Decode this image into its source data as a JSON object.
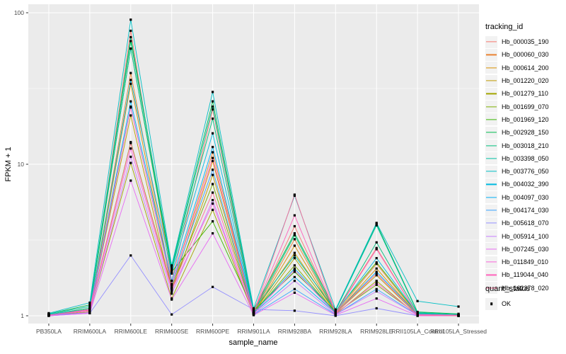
{
  "figure": {
    "panel_bg": "#EBEBEB",
    "grid_color": "#FFFFFF",
    "axis_text_color": "#4D4D4D",
    "legend_key_bg": "#F2F2F2",
    "point_color": "#000000"
  },
  "legends": {
    "tracking": {
      "title": "tracking_id"
    },
    "quant": {
      "title": "quant_status",
      "items": [
        {
          "label": "OK",
          "marker": "black-square"
        }
      ]
    }
  },
  "chart_data": {
    "type": "line",
    "title": "",
    "xlabel": "sample_name",
    "ylabel": "FPKM + 1",
    "y_scale": "log10",
    "ylim": [
      1,
      100
    ],
    "y_ticks": [
      1,
      10,
      100
    ],
    "y_minor_gridlines": [
      3.162,
      31.62
    ],
    "grid": true,
    "legend_position": "right",
    "point_marker": "small black square at every data point (quant_status = OK)",
    "categories": [
      "PB350LA",
      "RRIM600LA",
      "RRIM600LE",
      "RRIM600SE",
      "RRIM600PE",
      "RRIM901LA",
      "RRIM928BA",
      "RRIM928LA",
      "RRIM928LE",
      "RRII105LA_Control",
      "RRII105LA_Stressed"
    ],
    "series": [
      {
        "name": "Hb_000035_190",
        "color": "#F8766D",
        "values": [
          1.02,
          1.1,
          76,
          1.7,
          23,
          1.05,
          3.9,
          1.05,
          2.8,
          1.02,
          1.01
        ]
      },
      {
        "name": "Hb_000060_030",
        "color": "#EA8331",
        "values": [
          1.01,
          1.08,
          40,
          1.6,
          12,
          1.04,
          3.2,
          1.04,
          2.2,
          1.01,
          1.01
        ]
      },
      {
        "name": "Hb_000614_200",
        "color": "#D89000",
        "values": [
          1.01,
          1.06,
          34,
          1.5,
          10.5,
          1.03,
          2.9,
          1.03,
          2.05,
          1.01,
          1.0
        ]
      },
      {
        "name": "Hb_001220_020",
        "color": "#C09B00",
        "values": [
          1.01,
          1.08,
          21,
          1.45,
          8.5,
          1.04,
          2.6,
          1.04,
          1.85,
          1.01,
          1.0
        ]
      },
      {
        "name": "Hb_001279_110",
        "color": "#A3A500",
        "values": [
          1.0,
          1.05,
          10.2,
          1.3,
          5.0,
          1.02,
          2.4,
          1.02,
          1.7,
          1.0,
          1.0
        ]
      },
      {
        "name": "Hb_001699_070",
        "color": "#7CAE00",
        "values": [
          1.01,
          1.09,
          14,
          1.55,
          7.4,
          1.04,
          2.15,
          1.04,
          1.6,
          1.02,
          1.01
        ]
      },
      {
        "name": "Hb_001969_120",
        "color": "#39B600",
        "values": [
          1.02,
          1.12,
          58,
          1.95,
          4.2,
          1.08,
          1.95,
          1.07,
          2.25,
          1.03,
          1.01
        ]
      },
      {
        "name": "Hb_002928_150",
        "color": "#00BB4E",
        "values": [
          1.03,
          1.18,
          65,
          2.1,
          26,
          1.1,
          3.5,
          1.09,
          4.05,
          1.06,
          1.03
        ]
      },
      {
        "name": "Hb_003018_210",
        "color": "#00BF7D",
        "values": [
          1.02,
          1.12,
          69,
          2.0,
          20,
          1.06,
          3.4,
          1.05,
          3.05,
          1.04,
          1.02
        ]
      },
      {
        "name": "Hb_003398_050",
        "color": "#00C1A3",
        "values": [
          1.03,
          1.15,
          58,
          2.05,
          24,
          1.09,
          2.5,
          1.08,
          3.95,
          1.05,
          1.02
        ]
      },
      {
        "name": "Hb_003776_050",
        "color": "#00BFC4",
        "values": [
          1.04,
          1.22,
          90,
          2.15,
          30,
          1.12,
          6.2,
          1.1,
          4.1,
          1.25,
          1.15
        ]
      },
      {
        "name": "Hb_004032_390",
        "color": "#00BAE0",
        "values": [
          1.02,
          1.1,
          36,
          1.9,
          16,
          1.05,
          2.05,
          1.05,
          2.4,
          1.03,
          1.01
        ]
      },
      {
        "name": "Hb_004097_030",
        "color": "#00B0F6",
        "values": [
          1.01,
          1.08,
          26,
          1.7,
          13,
          1.04,
          1.8,
          1.04,
          1.95,
          1.02,
          1.01
        ]
      },
      {
        "name": "Hb_004174_030",
        "color": "#35A2FF",
        "values": [
          1.01,
          1.05,
          24,
          1.6,
          9.2,
          1.02,
          1.5,
          1.02,
          1.5,
          1.01,
          1.0
        ]
      },
      {
        "name": "Hb_005618_070",
        "color": "#9590FF",
        "values": [
          1.0,
          1.04,
          2.5,
          1.02,
          1.55,
          1.1,
          1.08,
          1.0,
          1.12,
          1.0,
          1.0
        ]
      },
      {
        "name": "Hb_005914_100",
        "color": "#C77CFF",
        "values": [
          1.0,
          1.05,
          11.2,
          1.4,
          5.8,
          1.02,
          1.7,
          1.02,
          1.45,
          1.01,
          1.0
        ]
      },
      {
        "name": "Hb_007245_030",
        "color": "#E76BF3",
        "values": [
          1.0,
          1.04,
          7.8,
          1.28,
          3.5,
          1.01,
          1.42,
          1.01,
          1.3,
          1.0,
          1.0
        ]
      },
      {
        "name": "Hb_011849_010",
        "color": "#FA62DB",
        "values": [
          1.01,
          1.08,
          12.7,
          1.48,
          5.5,
          1.03,
          2.0,
          1.03,
          1.65,
          1.01,
          1.0
        ]
      },
      {
        "name": "Hb_119044_040",
        "color": "#FF62BC",
        "values": [
          1.01,
          1.1,
          23.7,
          1.62,
          11,
          1.05,
          4.6,
          1.04,
          2.75,
          1.02,
          1.01
        ]
      },
      {
        "name": "Hb_162378_020",
        "color": "#FF6A98",
        "values": [
          1.01,
          1.09,
          13.8,
          1.52,
          6.5,
          1.04,
          6.3,
          1.04,
          1.9,
          1.01,
          1.0
        ]
      }
    ]
  }
}
